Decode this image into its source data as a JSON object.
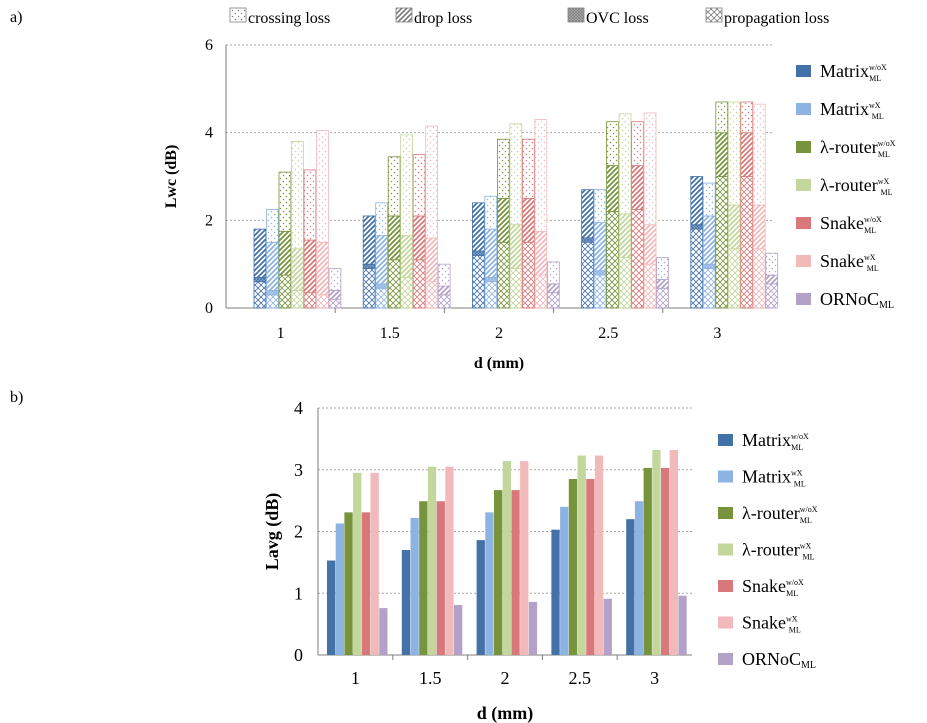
{
  "panels": {
    "a": "a)",
    "b": "b)"
  },
  "colors": {
    "matrix_wox": "#4472A8",
    "matrix_wx": "#8DB3E2",
    "lambda_wox": "#77933C",
    "lambda_wx": "#C3D69B",
    "snake_wox": "#D9787A",
    "snake_wx": "#F2B9BA",
    "ornoc": "#B3A2C7"
  },
  "legend_series": [
    {
      "key": "matrix_wox",
      "base": "Matrix",
      "sub": "ML",
      "sup": "w/oX"
    },
    {
      "key": "matrix_wx",
      "base": "Matrix",
      "sub": "ML",
      "sup": "wX"
    },
    {
      "key": "lambda_wox",
      "base": "λ-router",
      "sub": "ML",
      "sup": "w/oX"
    },
    {
      "key": "lambda_wx",
      "base": "λ-router",
      "sub": "ML",
      "sup": "wX"
    },
    {
      "key": "snake_wox",
      "base": "Snake",
      "sub": "ML",
      "sup": "w/oX"
    },
    {
      "key": "snake_wx",
      "base": "Snake",
      "sub": "ML",
      "sup": "wX"
    },
    {
      "key": "ornoc",
      "base": "ORNoC",
      "sub": "ML",
      "sup": ""
    }
  ],
  "loss_legend": [
    {
      "pattern": "crossing",
      "label": "crossing loss"
    },
    {
      "pattern": "drop",
      "label": "drop loss"
    },
    {
      "pattern": "ovc",
      "label": "OVC loss"
    },
    {
      "pattern": "prop",
      "label": "propagation loss"
    }
  ],
  "chart_data": [
    {
      "type": "bar",
      "stacked": true,
      "xlabel": "d (mm)",
      "ylabel": "Lwc (dB)",
      "ylim": [
        0,
        6
      ],
      "yticks": [
        0,
        2,
        4,
        6
      ],
      "grid": true,
      "legend_placement": "top and right",
      "categories": [
        "1",
        "1.5",
        "2",
        "2.5",
        "3"
      ],
      "stack_components": [
        "propagation loss",
        "OVC loss",
        "drop loss",
        "crossing loss"
      ],
      "series": [
        {
          "key": "matrix_wox",
          "stacks": [
            [
              0.6,
              0.1,
              1.1,
              0.0
            ],
            [
              0.9,
              0.1,
              1.1,
              0.0
            ],
            [
              1.2,
              0.1,
              1.1,
              0.0
            ],
            [
              1.5,
              0.1,
              1.1,
              0.0
            ],
            [
              1.8,
              0.1,
              1.1,
              0.0
            ]
          ]
        },
        {
          "key": "matrix_wx",
          "stacks": [
            [
              0.3,
              0.1,
              1.1,
              0.75
            ],
            [
              0.45,
              0.1,
              1.1,
              0.75
            ],
            [
              0.6,
              0.1,
              1.1,
              0.75
            ],
            [
              0.75,
              0.1,
              1.1,
              0.75
            ],
            [
              0.9,
              0.1,
              1.1,
              0.75
            ]
          ]
        },
        {
          "key": "lambda_wox",
          "stacks": [
            [
              0.75,
              0.0,
              1.0,
              1.35
            ],
            [
              1.1,
              0.0,
              1.0,
              1.35
            ],
            [
              1.5,
              0.0,
              1.0,
              1.35
            ],
            [
              2.2,
              0.0,
              1.05,
              1.0
            ],
            [
              3.0,
              0.0,
              1.0,
              0.7
            ]
          ]
        },
        {
          "key": "lambda_wx",
          "stacks": [
            [
              0.4,
              0.0,
              0.95,
              2.45
            ],
            [
              0.7,
              0.0,
              0.95,
              2.3
            ],
            [
              0.9,
              0.0,
              1.0,
              2.3
            ],
            [
              1.15,
              0.0,
              1.0,
              2.28
            ],
            [
              1.35,
              0.0,
              1.0,
              2.35
            ]
          ]
        },
        {
          "key": "snake_wox",
          "stacks": [
            [
              0.35,
              0.0,
              1.2,
              1.6
            ],
            [
              1.1,
              0.0,
              1.0,
              1.4
            ],
            [
              1.5,
              0.0,
              1.0,
              1.35
            ],
            [
              2.25,
              0.0,
              1.0,
              1.0
            ],
            [
              3.0,
              0.0,
              1.0,
              0.7
            ]
          ]
        },
        {
          "key": "snake_wx",
          "stacks": [
            [
              0.3,
              0.0,
              1.2,
              2.55
            ],
            [
              0.6,
              0.0,
              1.0,
              2.55
            ],
            [
              0.75,
              0.0,
              1.0,
              2.55
            ],
            [
              1.0,
              0.0,
              0.9,
              2.55
            ],
            [
              1.35,
              0.0,
              1.0,
              2.3
            ]
          ]
        },
        {
          "key": "ornoc",
          "stacks": [
            [
              0.2,
              0.0,
              0.2,
              0.5
            ],
            [
              0.3,
              0.0,
              0.2,
              0.5
            ],
            [
              0.35,
              0.0,
              0.2,
              0.5
            ],
            [
              0.45,
              0.0,
              0.2,
              0.5
            ],
            [
              0.55,
              0.0,
              0.2,
              0.5
            ]
          ]
        }
      ]
    },
    {
      "type": "bar",
      "xlabel": "d (mm)",
      "ylabel": "Lavg (dB)",
      "ylim": [
        0,
        4
      ],
      "yticks": [
        0,
        1,
        2,
        3,
        4
      ],
      "grid": true,
      "legend_placement": "right",
      "categories": [
        "1",
        "1.5",
        "2",
        "2.5",
        "3"
      ],
      "series": [
        {
          "key": "matrix_wox",
          "values": [
            1.53,
            1.7,
            1.86,
            2.03,
            2.2
          ]
        },
        {
          "key": "matrix_wx",
          "values": [
            2.13,
            2.22,
            2.31,
            2.4,
            2.49
          ]
        },
        {
          "key": "lambda_wox",
          "values": [
            2.31,
            2.49,
            2.67,
            2.85,
            3.03
          ]
        },
        {
          "key": "lambda_wx",
          "values": [
            2.95,
            3.05,
            3.14,
            3.23,
            3.32
          ]
        },
        {
          "key": "snake_wox",
          "values": [
            2.31,
            2.49,
            2.67,
            2.85,
            3.03
          ]
        },
        {
          "key": "snake_wx",
          "values": [
            2.95,
            3.05,
            3.14,
            3.23,
            3.32
          ]
        },
        {
          "key": "ornoc",
          "values": [
            0.76,
            0.81,
            0.86,
            0.91,
            0.96
          ]
        }
      ]
    }
  ]
}
